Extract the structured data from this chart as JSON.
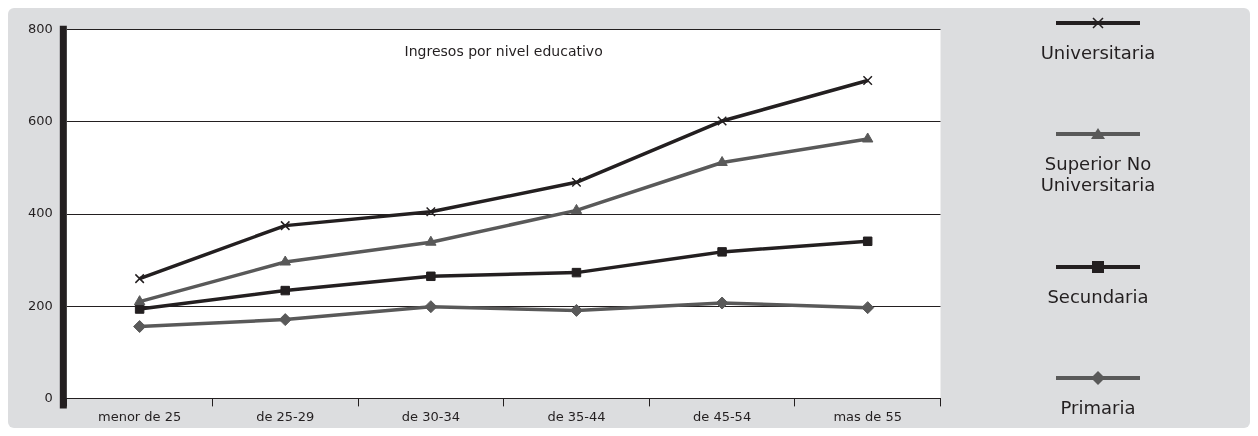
{
  "chart_data": {
    "type": "line",
    "title": "Ingresos por nivel educativo",
    "categories": [
      "menor de 25",
      "de 25-29",
      "de 30-34",
      "de 35-44",
      "de 45-54",
      "mas de 55"
    ],
    "series": [
      {
        "name": "Universitaria",
        "color": "#231f20",
        "marker": "cross",
        "values": [
          260,
          375,
          405,
          469,
          602,
          690
        ]
      },
      {
        "name": "Superior No Universitaria",
        "color": "#595959",
        "marker": "triangle",
        "values": [
          210,
          296,
          339,
          408,
          512,
          563
        ]
      },
      {
        "name": "Secundaria",
        "color": "#231f20",
        "marker": "square",
        "values": [
          194,
          234,
          265,
          273,
          318,
          341
        ]
      },
      {
        "name": "Primaria",
        "color": "#595959",
        "marker": "diamond",
        "values": [
          156,
          171,
          199,
          191,
          207,
          197
        ]
      }
    ],
    "ylim": [
      0,
      800
    ],
    "yticks": [
      0,
      200,
      400,
      600,
      800
    ],
    "grid": "y",
    "legend": "right",
    "line_style": "solid"
  }
}
